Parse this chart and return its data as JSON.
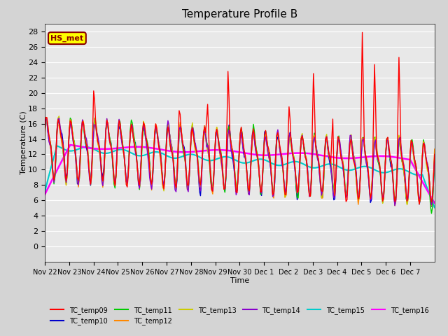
{
  "title": "Temperature Profile B",
  "xlabel": "Time",
  "ylabel": "Temperature (C)",
  "ylim": [
    -2,
    29
  ],
  "yticks": [
    0,
    2,
    4,
    6,
    8,
    10,
    12,
    14,
    16,
    18,
    20,
    22,
    24,
    26,
    28
  ],
  "xtick_labels": [
    "Nov 22",
    "Nov 23",
    "Nov 24",
    "Nov 25",
    "Nov 26",
    "Nov 27",
    "Nov 28",
    "Nov 29",
    "Nov 30",
    "Dec 1",
    "Dec 2",
    "Dec 3",
    "Dec 4",
    "Dec 5",
    "Dec 6",
    "Dec 7"
  ],
  "series_colors": {
    "TC_temp09": "#ff0000",
    "TC_temp10": "#0000cc",
    "TC_temp11": "#00cc00",
    "TC_temp12": "#ff8800",
    "TC_temp13": "#cccc00",
    "TC_temp14": "#8800cc",
    "TC_temp15": "#00cccc",
    "TC_temp16": "#ff00ff"
  },
  "series_order": [
    "TC_temp09",
    "TC_temp10",
    "TC_temp11",
    "TC_temp12",
    "TC_temp13",
    "TC_temp14",
    "TC_temp15",
    "TC_temp16"
  ],
  "legend_ncol": 6,
  "fig_bg": "#d4d4d4",
  "plot_bg": "#e8e8e8",
  "annotation_text": "HS_met",
  "annotation_color": "#8B0000",
  "annotation_bg": "#ffff00",
  "annotation_border": "#8B0000",
  "grid_color": "#ffffff",
  "linewidth_default": 1.0,
  "linewidth_tc15": 1.5,
  "linewidth_tc16": 1.8
}
